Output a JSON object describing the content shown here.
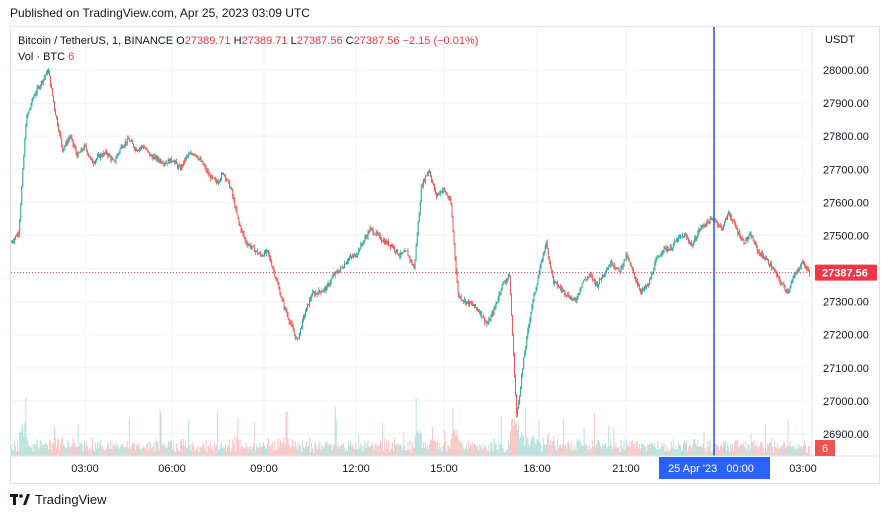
{
  "header": {
    "published": "Published on TradingView.com, Apr 25, 2023 03:09 UTC"
  },
  "legend": {
    "symbol": "Bitcoin / TetherUS, 1, BINANCE",
    "o_label": "O",
    "o_value": "27389.71",
    "h_label": "H",
    "h_value": "27389.71",
    "l_label": "L",
    "l_value": "27387.56",
    "c_label": "C",
    "c_value": "27387.56",
    "change": "−2.15 (−0.01%)",
    "vol_label": "Vol · BTC",
    "vol_value": "6"
  },
  "colors": {
    "up": "#26a69a",
    "down": "#ef5350",
    "crosshair": "#2962ff",
    "last_price": "#f23645"
  },
  "footer": {
    "brand": "TradingView"
  },
  "chart_data": {
    "type": "candlestick",
    "symbol": "Bitcoin / TetherUS",
    "exchange": "BINANCE",
    "interval": "1",
    "currency": "USDT",
    "y_ticks": [
      28000,
      27900,
      27800,
      27700,
      27600,
      27500,
      27400,
      27300,
      27200,
      27100,
      27000,
      26900
    ],
    "y_tick_labels": [
      "28000.00",
      "27900.00",
      "27800.00",
      "27700.00",
      "27600.00",
      "27500.00",
      "27400.00",
      "27300.00",
      "27200.00",
      "27100.00",
      "27000.00",
      "26900.00"
    ],
    "ylim": [
      26850,
      28060
    ],
    "x_ticks": [
      "03:00",
      "06:00",
      "09:00",
      "12:00",
      "15:00",
      "18:00",
      "21:00",
      "03:00"
    ],
    "last_price": 27387.56,
    "last_price_label": "27387.56",
    "crosshair_time_label": "25 Apr '23   00:00",
    "volume_last_label": "6",
    "price_path": [
      [
        "00:00",
        27480
      ],
      [
        "00:15",
        27510
      ],
      [
        "00:30",
        27850
      ],
      [
        "00:45",
        27920
      ],
      [
        "01:00",
        27960
      ],
      [
        "01:15",
        28000
      ],
      [
        "01:30",
        27870
      ],
      [
        "01:45",
        27760
      ],
      [
        "02:00",
        27800
      ],
      [
        "02:15",
        27740
      ],
      [
        "02:30",
        27770
      ],
      [
        "02:45",
        27720
      ],
      [
        "03:00",
        27740
      ],
      [
        "03:15",
        27750
      ],
      [
        "03:30",
        27720
      ],
      [
        "03:45",
        27770
      ],
      [
        "04:00",
        27790
      ],
      [
        "04:15",
        27760
      ],
      [
        "04:30",
        27770
      ],
      [
        "04:45",
        27740
      ],
      [
        "05:00",
        27730
      ],
      [
        "05:15",
        27720
      ],
      [
        "05:30",
        27730
      ],
      [
        "05:45",
        27700
      ],
      [
        "06:00",
        27740
      ],
      [
        "06:15",
        27750
      ],
      [
        "06:30",
        27720
      ],
      [
        "06:45",
        27680
      ],
      [
        "07:00",
        27660
      ],
      [
        "07:15",
        27690
      ],
      [
        "07:30",
        27640
      ],
      [
        "07:45",
        27540
      ],
      [
        "08:00",
        27480
      ],
      [
        "08:15",
        27460
      ],
      [
        "08:30",
        27440
      ],
      [
        "08:45",
        27450
      ],
      [
        "09:00",
        27380
      ],
      [
        "09:15",
        27300
      ],
      [
        "09:30",
        27240
      ],
      [
        "09:45",
        27180
      ],
      [
        "10:00",
        27260
      ],
      [
        "10:15",
        27320
      ],
      [
        "10:30",
        27330
      ],
      [
        "10:45",
        27340
      ],
      [
        "11:00",
        27380
      ],
      [
        "11:15",
        27400
      ],
      [
        "11:30",
        27430
      ],
      [
        "11:45",
        27440
      ],
      [
        "12:00",
        27480
      ],
      [
        "12:15",
        27520
      ],
      [
        "12:30",
        27500
      ],
      [
        "12:45",
        27480
      ],
      [
        "13:00",
        27470
      ],
      [
        "13:15",
        27440
      ],
      [
        "13:30",
        27450
      ],
      [
        "13:45",
        27400
      ],
      [
        "14:00",
        27650
      ],
      [
        "14:15",
        27700
      ],
      [
        "14:30",
        27620
      ],
      [
        "14:45",
        27640
      ],
      [
        "15:00",
        27600
      ],
      [
        "15:15",
        27320
      ],
      [
        "15:30",
        27300
      ],
      [
        "15:45",
        27290
      ],
      [
        "16:00",
        27270
      ],
      [
        "16:15",
        27230
      ],
      [
        "16:30",
        27280
      ],
      [
        "16:45",
        27350
      ],
      [
        "17:00",
        27380
      ],
      [
        "17:15",
        26950
      ],
      [
        "17:30",
        27130
      ],
      [
        "17:45",
        27280
      ],
      [
        "18:00",
        27380
      ],
      [
        "18:15",
        27480
      ],
      [
        "18:30",
        27360
      ],
      [
        "18:45",
        27340
      ],
      [
        "19:00",
        27320
      ],
      [
        "19:15",
        27300
      ],
      [
        "19:30",
        27360
      ],
      [
        "19:45",
        27380
      ],
      [
        "20:00",
        27350
      ],
      [
        "20:15",
        27390
      ],
      [
        "20:30",
        27420
      ],
      [
        "20:45",
        27390
      ],
      [
        "21:00",
        27440
      ],
      [
        "21:15",
        27380
      ],
      [
        "21:30",
        27330
      ],
      [
        "21:45",
        27350
      ],
      [
        "22:00",
        27420
      ],
      [
        "22:15",
        27460
      ],
      [
        "22:30",
        27460
      ],
      [
        "22:45",
        27490
      ],
      [
        "23:00",
        27500
      ],
      [
        "23:15",
        27470
      ],
      [
        "23:30",
        27520
      ],
      [
        "23:45",
        27540
      ],
      [
        "00:00",
        27550
      ],
      [
        "00:15",
        27520
      ],
      [
        "00:30",
        27570
      ],
      [
        "00:45",
        27520
      ],
      [
        "01:00",
        27480
      ],
      [
        "01:15",
        27500
      ],
      [
        "01:30",
        27450
      ],
      [
        "01:45",
        27430
      ],
      [
        "02:00",
        27400
      ],
      [
        "02:15",
        27360
      ],
      [
        "02:30",
        27330
      ],
      [
        "02:45",
        27380
      ],
      [
        "03:00",
        27420
      ],
      [
        "03:09",
        27387.56
      ]
    ]
  }
}
